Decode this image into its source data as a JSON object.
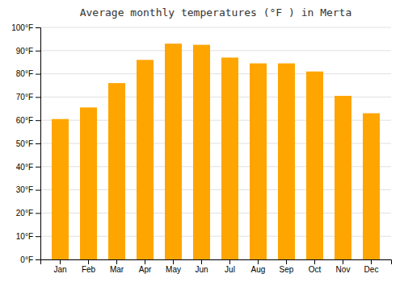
{
  "chart_data": {
    "type": "bar",
    "title": "Average monthly temperatures (°F ) in Merta",
    "categories": [
      "Jan",
      "Feb",
      "Mar",
      "Apr",
      "May",
      "Jun",
      "Jul",
      "Aug",
      "Sep",
      "Oct",
      "Nov",
      "Dec"
    ],
    "values": [
      60.5,
      65.5,
      76.0,
      86.0,
      93.0,
      92.5,
      87.0,
      84.5,
      84.5,
      81.0,
      70.5,
      63.0
    ],
    "color": "#FFA500",
    "ylim": [
      0,
      100
    ],
    "yticks": [
      {
        "value": 0,
        "label": "0°F"
      },
      {
        "value": 10,
        "label": "10°F"
      },
      {
        "value": 20,
        "label": "20°F"
      },
      {
        "value": 30,
        "label": "30°F"
      },
      {
        "value": 40,
        "label": "40°F"
      },
      {
        "value": 50,
        "label": "50°F"
      },
      {
        "value": 60,
        "label": "60°F"
      },
      {
        "value": 70,
        "label": "70°F"
      },
      {
        "value": 80,
        "label": "80°F"
      },
      {
        "value": 90,
        "label": "90°F"
      },
      {
        "value": 100,
        "label": "100°F"
      }
    ],
    "grid": true
  }
}
